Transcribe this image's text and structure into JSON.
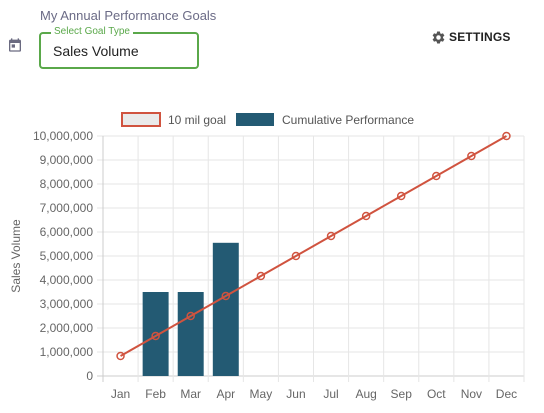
{
  "header": {
    "page_title": "My Annual Performance Goals",
    "goal_type_label": "Select Goal Type",
    "goal_type_value": "Sales Volume",
    "settings_label": "SETTINGS",
    "calendar_icon": "calendar-icon",
    "settings_icon": "gear-icon"
  },
  "colors": {
    "accent_green": "#5aa84a",
    "goal_line": "#d0533f",
    "goal_legend_fill": "#eaeaea",
    "bar_fill": "#235a73"
  },
  "chart_data": {
    "type": "bar",
    "categories": [
      "Jan",
      "Feb",
      "Mar",
      "Apr",
      "May",
      "Jun",
      "Jul",
      "Aug",
      "Sep",
      "Oct",
      "Nov",
      "Dec"
    ],
    "series": [
      {
        "name": "10 mil goal",
        "type": "line",
        "values": [
          833333,
          1666667,
          2500000,
          3333333,
          4166667,
          5000000,
          5833333,
          6666667,
          7500000,
          8333333,
          9166667,
          10000000
        ]
      },
      {
        "name": "Cumulative Performance",
        "type": "bar",
        "values": [
          0,
          3500000,
          3500000,
          5550000,
          null,
          null,
          null,
          null,
          null,
          null,
          null,
          null
        ]
      }
    ],
    "ylabel": "Sales Volume",
    "xlabel": "",
    "ylim": [
      0,
      10000000
    ],
    "yticks": [
      "0",
      "1,000,000",
      "2,000,000",
      "3,000,000",
      "4,000,000",
      "5,000,000",
      "6,000,000",
      "7,000,000",
      "8,000,000",
      "9,000,000",
      "10,000,000"
    ],
    "grid": true,
    "legend_position": "top"
  }
}
